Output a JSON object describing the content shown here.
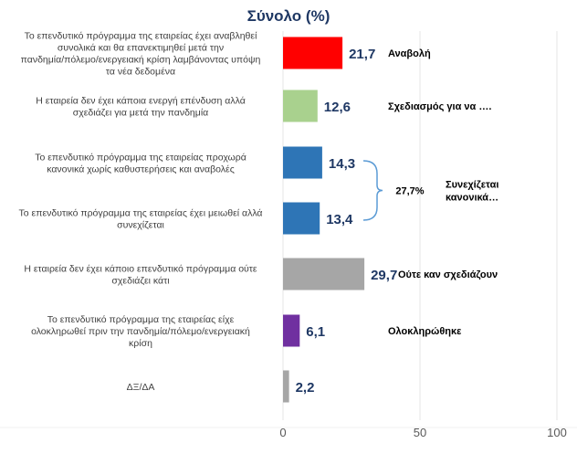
{
  "chart_data": {
    "type": "bar",
    "orientation": "horizontal",
    "title": "Σύνολο  (%)",
    "categories": [
      "Το επενδυτικό πρόγραμμα της εταιρείας έχει αναβληθεί συνολικά και θα επανεκτιμηθεί μετά την πανδημία/πόλεμο/ενεργειακή κρίση λαμβάνοντας υπόψη τα νέα δεδομένα",
      "Η εταιρεία δεν έχει κάποια ενεργή επένδυση αλλά σχεδιάζει για μετά την πανδημία",
      "Το επενδυτικό πρόγραμμα της εταιρείας προχωρά κανονικά χωρίς καθυστερήσεις και αναβολές",
      "Το επενδυτικό πρόγραμμα της εταιρείας έχει μειωθεί αλλά συνεχίζεται",
      "Η εταιρεία δεν έχει κάποιο επενδυτικό πρόγραμμα ούτε σχεδιάζει κάτι",
      "Το επενδυτικό πρόγραμμα της εταιρείας είχε ολοκληρωθεί πριν την πανδημία/πόλεμο/ενεργειακή κρίση",
      "ΔΞ/ΔΑ"
    ],
    "category_lines": [
      [
        "Το επενδυτικό πρόγραμμα της εταιρείας έχει αναβληθεί",
        "συνολικά και θα επανεκτιμηθεί μετά την",
        "πανδημία/πόλεμο/ενεργειακή κρίση λαμβάνοντας υπόψη",
        "τα νέα δεδομένα"
      ],
      [
        "Η εταιρεία δεν έχει κάποια ενεργή επένδυση αλλά",
        "σχεδιάζει για μετά την πανδημία"
      ],
      [
        "Το επενδυτικό πρόγραμμα της εταιρείας προχωρά",
        "κανονικά χωρίς καθυστερήσεις και αναβολές"
      ],
      [
        "Το επενδυτικό πρόγραμμα της εταιρείας έχει μειωθεί αλλά",
        "συνεχίζεται"
      ],
      [
        "Η εταιρεία δεν έχει κάποιο επενδυτικό πρόγραμμα ούτε",
        "σχεδιάζει κάτι"
      ],
      [
        "Το επενδυτικό πρόγραμμα της εταιρείας είχε",
        "ολοκληρωθεί πριν την πανδημία/πόλεμο/ενεργειακή",
        "κρίση"
      ],
      [
        "ΔΞ/ΔΑ"
      ]
    ],
    "values": [
      21.7,
      12.6,
      14.3,
      13.4,
      29.7,
      6.1,
      2.2
    ],
    "value_labels": [
      "21,7",
      "12,6",
      "14,3",
      "13,4",
      "29,7",
      "6,1",
      "2,2"
    ],
    "colors": [
      "#ff0000",
      "#a9d18e",
      "#2e75b6",
      "#2e75b6",
      "#a6a6a6",
      "#7030a0",
      "#a6a6a6"
    ],
    "annotations": [
      {
        "text": "Αναβολή",
        "category_index": 0
      },
      {
        "text": "Σχεδιασμός για να ….",
        "category_index": 1
      },
      {
        "text": "Ούτε καν σχεδιάζουν",
        "category_index": 4
      },
      {
        "text": "Ολοκληρώθηκε",
        "category_index": 5
      }
    ],
    "group_annotation": {
      "categories": [
        2,
        3
      ],
      "total_label": "27,7%",
      "text_lines": [
        "Συνεχίζεται",
        "κανονικά…"
      ]
    },
    "x_ticks": [
      0,
      50,
      100
    ],
    "xlim": [
      0,
      100
    ],
    "grid": true,
    "xlabel": "",
    "ylabel": ""
  }
}
